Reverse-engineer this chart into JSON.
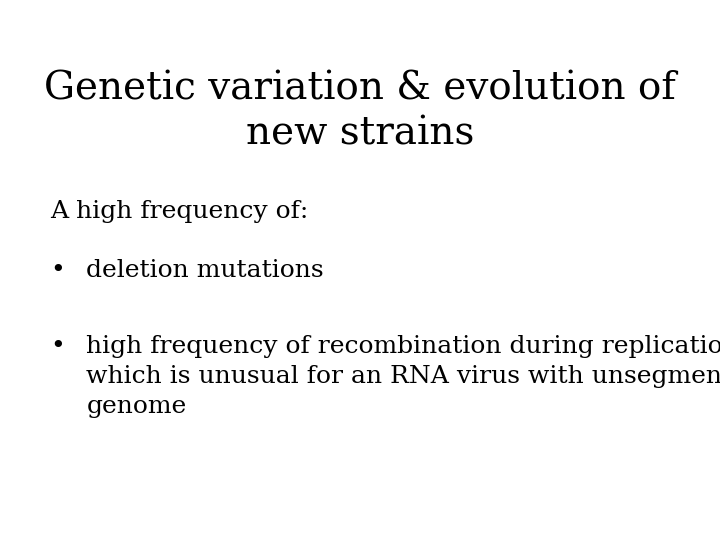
{
  "title_line1": "Genetic variation & evolution of",
  "title_line2": "new strains",
  "subtitle": "A high frequency of:",
  "bullet1": "deletion mutations",
  "bullet2_line1": "high frequency of recombination during replication",
  "bullet2_line2": "which is unusual for an RNA virus with unsegmented",
  "bullet2_line3": "genome",
  "background_color": "#ffffff",
  "text_color": "#000000",
  "title_fontsize": 28,
  "body_fontsize": 18,
  "bullet_fontsize": 18
}
